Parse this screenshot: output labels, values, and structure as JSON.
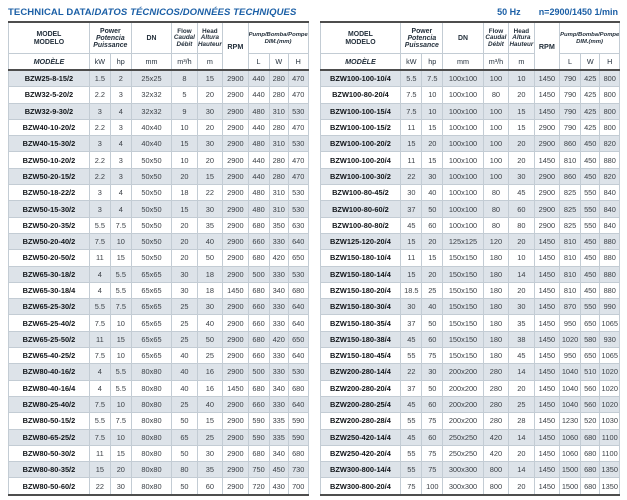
{
  "page": {
    "title_en": "TECHNICAL DATA/",
    "title_intl": "DATOS TÉCNICOS/DONNÉES TECHNIQUES",
    "frequency": "50 Hz",
    "speed_note": "n=2900/1450 1/min",
    "accent_color": "#1b5fa6",
    "shade_color": "#dde3e9"
  },
  "header": {
    "model": [
      "MODEL",
      "MODELO"
    ],
    "model_row2": "MODÈLE",
    "power": [
      "Power",
      "Potencia",
      "Puissance"
    ],
    "dn": "DN",
    "flow": [
      "Flow",
      "Caudal",
      "Débit"
    ],
    "head": [
      "Head",
      "Altura",
      "Hauteur"
    ],
    "rpm": "RPM",
    "dim": [
      "Pump/Bomba/Pompe",
      "DIM.(mm)"
    ],
    "units": {
      "kw": "kW",
      "hp": "hp",
      "dn": "mm",
      "flow": "m³/h",
      "head": "m",
      "l": "L",
      "w": "W",
      "h": "H"
    }
  },
  "left_table": {
    "rows": [
      [
        "BZW25-8-15/2",
        "1.5",
        "2",
        "25x25",
        "8",
        "15",
        "2900",
        "440",
        "280",
        "470"
      ],
      [
        "BZW32-5-20/2",
        "2.2",
        "3",
        "32x32",
        "5",
        "20",
        "2900",
        "440",
        "280",
        "470"
      ],
      [
        "BZW32-9-30/2",
        "3",
        "4",
        "32x32",
        "9",
        "30",
        "2900",
        "480",
        "310",
        "530"
      ],
      [
        "BZW40-10-20/2",
        "2.2",
        "3",
        "40x40",
        "10",
        "20",
        "2900",
        "440",
        "280",
        "470"
      ],
      [
        "BZW40-15-30/2",
        "3",
        "4",
        "40x40",
        "15",
        "30",
        "2900",
        "480",
        "310",
        "530"
      ],
      [
        "BZW50-10-20/2",
        "2.2",
        "3",
        "50x50",
        "10",
        "20",
        "2900",
        "440",
        "280",
        "470"
      ],
      [
        "BZW50-20-15/2",
        "2.2",
        "3",
        "50x50",
        "20",
        "15",
        "2900",
        "440",
        "280",
        "470"
      ],
      [
        "BZW50-18-22/2",
        "3",
        "4",
        "50x50",
        "18",
        "22",
        "2900",
        "480",
        "310",
        "530"
      ],
      [
        "BZW50-15-30/2",
        "3",
        "4",
        "50x50",
        "15",
        "30",
        "2900",
        "480",
        "310",
        "530"
      ],
      [
        "BZW50-20-35/2",
        "5.5",
        "7.5",
        "50x50",
        "20",
        "35",
        "2900",
        "680",
        "350",
        "630"
      ],
      [
        "BZW50-20-40/2",
        "7.5",
        "10",
        "50x50",
        "20",
        "40",
        "2900",
        "660",
        "330",
        "640"
      ],
      [
        "BZW50-20-50/2",
        "11",
        "15",
        "50x50",
        "20",
        "50",
        "2900",
        "680",
        "420",
        "650"
      ],
      [
        "BZW65-30-18/2",
        "4",
        "5.5",
        "65x65",
        "30",
        "18",
        "2900",
        "500",
        "330",
        "530"
      ],
      [
        "BZW65-30-18/4",
        "4",
        "5.5",
        "65x65",
        "30",
        "18",
        "1450",
        "680",
        "340",
        "680"
      ],
      [
        "BZW65-25-30/2",
        "5.5",
        "7.5",
        "65x65",
        "25",
        "30",
        "2900",
        "660",
        "330",
        "640"
      ],
      [
        "BZW65-25-40/2",
        "7.5",
        "10",
        "65x65",
        "25",
        "40",
        "2900",
        "660",
        "330",
        "640"
      ],
      [
        "BZW65-25-50/2",
        "11",
        "15",
        "65x65",
        "25",
        "50",
        "2900",
        "680",
        "420",
        "650"
      ],
      [
        "BZW65-40-25/2",
        "7.5",
        "10",
        "65x65",
        "40",
        "25",
        "2900",
        "660",
        "330",
        "640"
      ],
      [
        "BZW80-40-16/2",
        "4",
        "5.5",
        "80x80",
        "40",
        "16",
        "2900",
        "500",
        "330",
        "530"
      ],
      [
        "BZW80-40-16/4",
        "4",
        "5.5",
        "80x80",
        "40",
        "16",
        "1450",
        "680",
        "340",
        "680"
      ],
      [
        "BZW80-25-40/2",
        "7.5",
        "10",
        "80x80",
        "25",
        "40",
        "2900",
        "660",
        "330",
        "640"
      ],
      [
        "BZW80-50-15/2",
        "5.5",
        "7.5",
        "80x80",
        "50",
        "15",
        "2900",
        "590",
        "335",
        "590"
      ],
      [
        "BZW80-65-25/2",
        "7.5",
        "10",
        "80x80",
        "65",
        "25",
        "2900",
        "590",
        "335",
        "590"
      ],
      [
        "BZW80-50-30/2",
        "11",
        "15",
        "80x80",
        "50",
        "30",
        "2900",
        "680",
        "340",
        "680"
      ],
      [
        "BZW80-80-35/2",
        "15",
        "20",
        "80x80",
        "80",
        "35",
        "2900",
        "750",
        "450",
        "730"
      ],
      [
        "BZW80-50-60/2",
        "22",
        "30",
        "80x80",
        "50",
        "60",
        "2900",
        "720",
        "430",
        "700"
      ]
    ]
  },
  "right_table": {
    "rows": [
      [
        "BZW100-100-10/4",
        "5.5",
        "7.5",
        "100x100",
        "100",
        "10",
        "1450",
        "790",
        "425",
        "800"
      ],
      [
        "BZW100-80-20/4",
        "7.5",
        "10",
        "100x100",
        "80",
        "20",
        "1450",
        "790",
        "425",
        "800"
      ],
      [
        "BZW100-100-15/4",
        "7.5",
        "10",
        "100x100",
        "100",
        "15",
        "1450",
        "790",
        "425",
        "800"
      ],
      [
        "BZW100-100-15/2",
        "11",
        "15",
        "100x100",
        "100",
        "15",
        "2900",
        "790",
        "425",
        "800"
      ],
      [
        "BZW100-100-20/2",
        "15",
        "20",
        "100x100",
        "100",
        "20",
        "2900",
        "860",
        "450",
        "820"
      ],
      [
        "BZW100-100-20/4",
        "11",
        "15",
        "100x100",
        "100",
        "20",
        "1450",
        "810",
        "450",
        "880"
      ],
      [
        "BZW100-100-30/2",
        "22",
        "30",
        "100x100",
        "100",
        "30",
        "2900",
        "860",
        "450",
        "820"
      ],
      [
        "BZW100-80-45/2",
        "30",
        "40",
        "100x100",
        "80",
        "45",
        "2900",
        "825",
        "550",
        "840"
      ],
      [
        "BZW100-80-60/2",
        "37",
        "50",
        "100x100",
        "80",
        "60",
        "2900",
        "825",
        "550",
        "840"
      ],
      [
        "BZW100-80-80/2",
        "45",
        "60",
        "100x100",
        "80",
        "80",
        "2900",
        "825",
        "550",
        "840"
      ],
      [
        "BZW125-120-20/4",
        "15",
        "20",
        "125x125",
        "120",
        "20",
        "1450",
        "810",
        "450",
        "880"
      ],
      [
        "BZW150-180-10/4",
        "11",
        "15",
        "150x150",
        "180",
        "10",
        "1450",
        "810",
        "450",
        "880"
      ],
      [
        "BZW150-180-14/4",
        "15",
        "20",
        "150x150",
        "180",
        "14",
        "1450",
        "810",
        "450",
        "880"
      ],
      [
        "BZW150-180-20/4",
        "18.5",
        "25",
        "150x150",
        "180",
        "20",
        "1450",
        "810",
        "450",
        "880"
      ],
      [
        "BZW150-180-30/4",
        "30",
        "40",
        "150x150",
        "180",
        "30",
        "1450",
        "870",
        "550",
        "990"
      ],
      [
        "BZW150-180-35/4",
        "37",
        "50",
        "150x150",
        "180",
        "35",
        "1450",
        "950",
        "650",
        "1065"
      ],
      [
        "BZW150-180-38/4",
        "45",
        "60",
        "150x150",
        "180",
        "38",
        "1450",
        "1020",
        "580",
        "930"
      ],
      [
        "BZW150-180-45/4",
        "55",
        "75",
        "150x150",
        "180",
        "45",
        "1450",
        "950",
        "650",
        "1065"
      ],
      [
        "BZW200-280-14/4",
        "22",
        "30",
        "200x200",
        "280",
        "14",
        "1450",
        "1040",
        "510",
        "1020"
      ],
      [
        "BZW200-280-20/4",
        "37",
        "50",
        "200x200",
        "280",
        "20",
        "1450",
        "1040",
        "560",
        "1020"
      ],
      [
        "BZW200-280-25/4",
        "45",
        "60",
        "200x200",
        "280",
        "25",
        "1450",
        "1040",
        "560",
        "1020"
      ],
      [
        "BZW200-280-28/4",
        "55",
        "75",
        "200x200",
        "280",
        "28",
        "1450",
        "1230",
        "520",
        "1030"
      ],
      [
        "BZW250-420-14/4",
        "45",
        "60",
        "250x250",
        "420",
        "14",
        "1450",
        "1060",
        "680",
        "1100"
      ],
      [
        "BZW250-420-20/4",
        "55",
        "75",
        "250x250",
        "420",
        "20",
        "1450",
        "1060",
        "680",
        "1100"
      ],
      [
        "BZW300-800-14/4",
        "55",
        "75",
        "300x300",
        "800",
        "14",
        "1450",
        "1500",
        "680",
        "1350"
      ],
      [
        "BZW300-800-20/4",
        "75",
        "100",
        "300x300",
        "800",
        "20",
        "1450",
        "1500",
        "680",
        "1350"
      ]
    ]
  }
}
